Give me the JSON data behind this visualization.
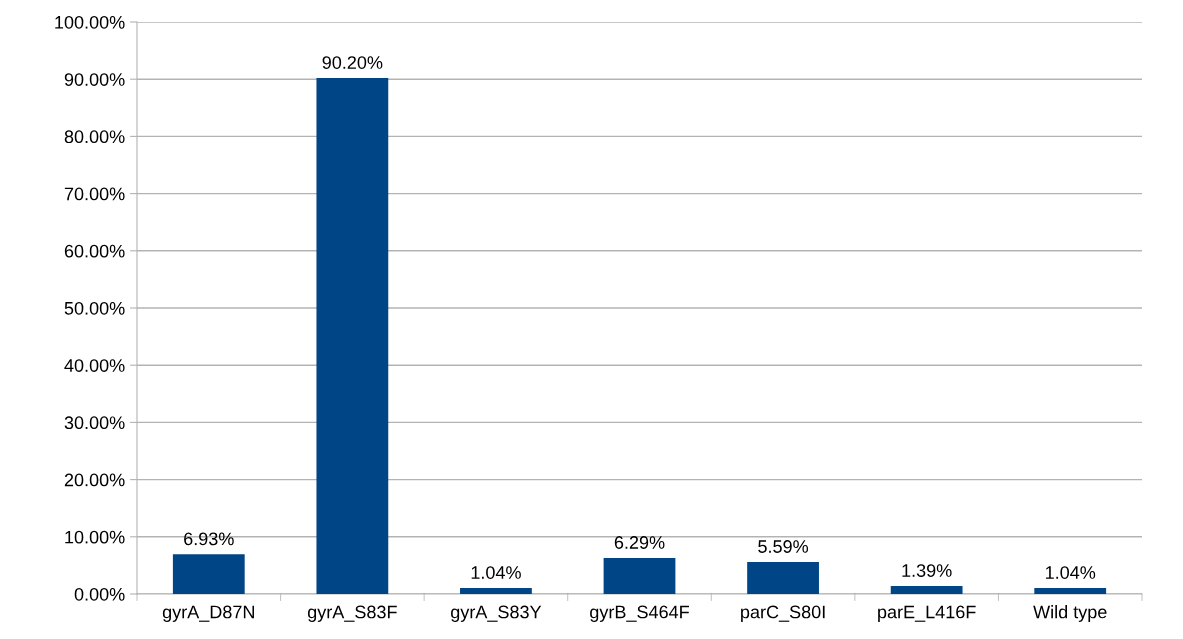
{
  "chart_data": {
    "type": "bar",
    "categories": [
      "gyrA_D87N",
      "gyrA_S83F",
      "gyrA_S83Y",
      "gyrB_S464F",
      "parC_S80I",
      "parE_L416F",
      "Wild type"
    ],
    "values": [
      6.93,
      90.2,
      1.04,
      6.29,
      5.59,
      1.39,
      1.04
    ],
    "value_labels": [
      "6.93%",
      "90.20%",
      "1.04%",
      "6.29%",
      "5.59%",
      "1.39%",
      "1.04%"
    ],
    "color": "#004586",
    "ylim": [
      0,
      100
    ],
    "yticks": [
      {
        "value": 0,
        "label": "0.00%"
      },
      {
        "value": 10,
        "label": "10.00%"
      },
      {
        "value": 20,
        "label": "20.00%"
      },
      {
        "value": 30,
        "label": "30.00%"
      },
      {
        "value": 40,
        "label": "40.00%"
      },
      {
        "value": 50,
        "label": "50.00%"
      },
      {
        "value": 60,
        "label": "60.00%"
      },
      {
        "value": 70,
        "label": "70.00%"
      },
      {
        "value": 80,
        "label": "80.00%"
      },
      {
        "value": 90,
        "label": "90.00%"
      },
      {
        "value": 100,
        "label": "100.00%"
      }
    ],
    "grid": "y",
    "legend": false
  }
}
